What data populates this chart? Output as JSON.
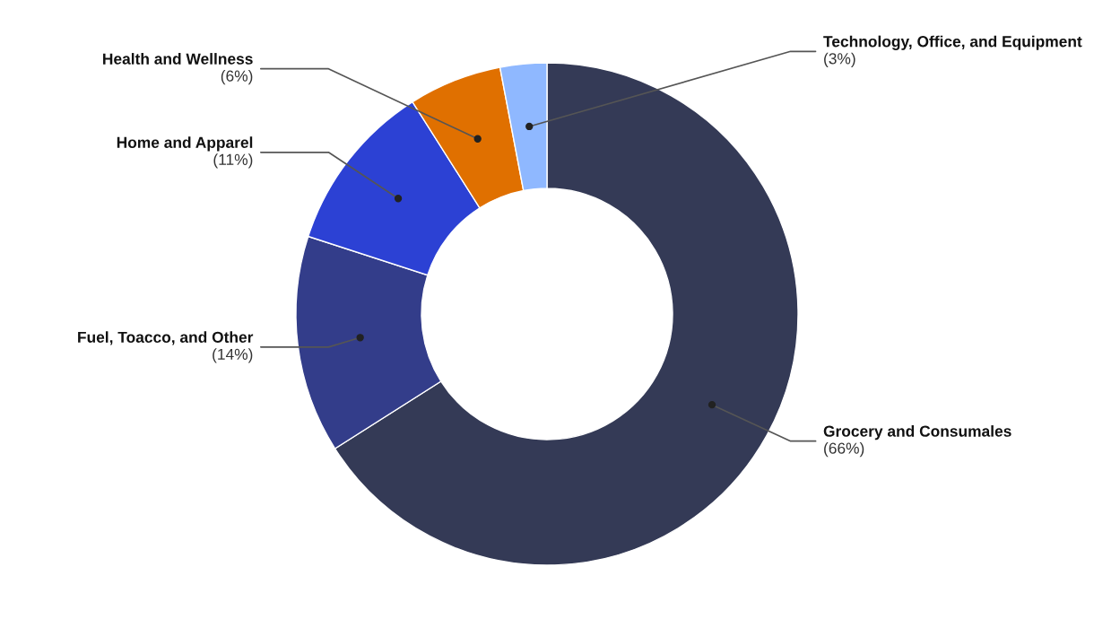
{
  "chart_data": {
    "type": "donut",
    "categories": [
      "Grocery and Consumales",
      "Fuel, Toacco, and Other",
      "Home and Apparel",
      "Health and Wellness",
      "Technology, Office, and Equipment"
    ],
    "values": [
      66,
      14,
      11,
      6,
      3
    ],
    "colors": [
      "#343a56",
      "#333d8a",
      "#2c41d4",
      "#e07000",
      "#8fb8ff"
    ],
    "value_labels": [
      "(66%)",
      "(14%)",
      "(11%)",
      "(6%)",
      "(3%)"
    ]
  }
}
